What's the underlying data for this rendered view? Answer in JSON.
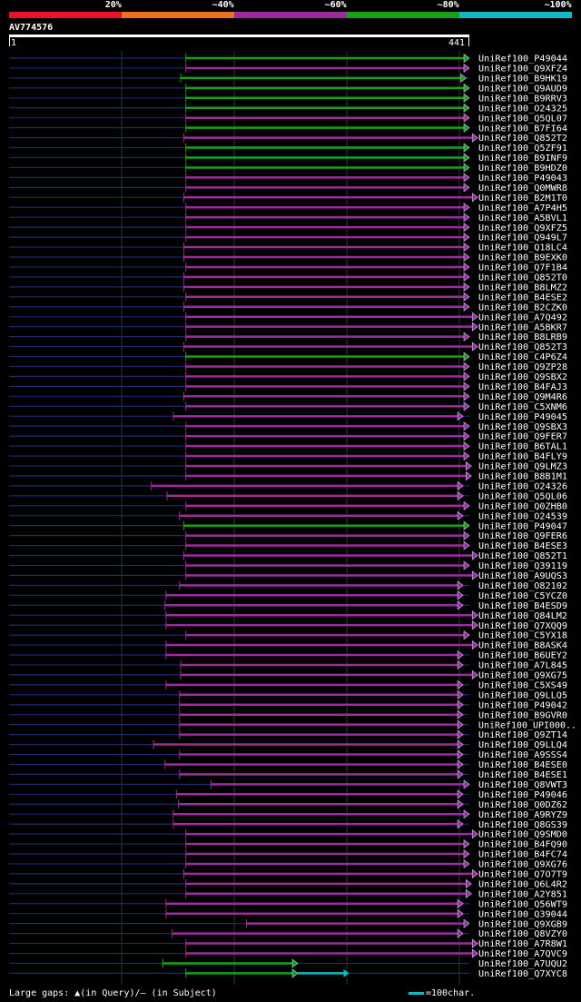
{
  "legend": {
    "labels": [
      "20%",
      "~40%",
      "~60%",
      "~80%",
      "~100%"
    ],
    "colors": [
      "#e8132b",
      "#e8731c",
      "#9a2c9c",
      "#17a117",
      "#12b8c4"
    ]
  },
  "query": {
    "id": "AV774576",
    "start": "1",
    "end": "441",
    "length": 441
  },
  "hits": [
    {
      "name": "UniRef100_P49044",
      "start": 170,
      "end": 441,
      "id": "g"
    },
    {
      "name": "UniRef100_Q9XFZ4",
      "start": 170,
      "end": 441,
      "id": "m"
    },
    {
      "name": "UniRef100_B9HK19",
      "start": 165,
      "end": 438,
      "id": "g"
    },
    {
      "name": "UniRef100_Q9AUD9",
      "start": 170,
      "end": 441,
      "id": "g"
    },
    {
      "name": "UniRef100_B9RRV3",
      "start": 170,
      "end": 441,
      "id": "g"
    },
    {
      "name": "UniRef100_O24325",
      "start": 170,
      "end": 441,
      "id": "g"
    },
    {
      "name": "UniRef100_Q5QL07",
      "start": 170,
      "end": 441,
      "id": "m"
    },
    {
      "name": "UniRef100_B7FI64",
      "start": 170,
      "end": 441,
      "id": "g"
    },
    {
      "name": "UniRef100_Q852T2",
      "start": 168,
      "end": 449,
      "id": "m"
    },
    {
      "name": "UniRef100_Q5ZF91",
      "start": 170,
      "end": 441,
      "id": "g"
    },
    {
      "name": "UniRef100_B9INF9",
      "start": 170,
      "end": 441,
      "id": "g"
    },
    {
      "name": "UniRef100_B9HDZ0",
      "start": 170,
      "end": 441,
      "id": "g"
    },
    {
      "name": "UniRef100_P49043",
      "start": 170,
      "end": 441,
      "id": "m"
    },
    {
      "name": "UniRef100_Q0MWR8",
      "start": 170,
      "end": 441,
      "id": "m"
    },
    {
      "name": "UniRef100_B2M1T0",
      "start": 168,
      "end": 449,
      "id": "m"
    },
    {
      "name": "UniRef100_A7P4H5",
      "start": 170,
      "end": 441,
      "id": "m"
    },
    {
      "name": "UniRef100_A5BVL1",
      "start": 170,
      "end": 441,
      "id": "m"
    },
    {
      "name": "UniRef100_Q9XFZ5",
      "start": 170,
      "end": 441,
      "id": "m"
    },
    {
      "name": "UniRef100_Q949L7",
      "start": 170,
      "end": 441,
      "id": "m"
    },
    {
      "name": "UniRef100_Q18LC4",
      "start": 168,
      "end": 441,
      "id": "m"
    },
    {
      "name": "UniRef100_B9EXK0",
      "start": 168,
      "end": 441,
      "id": "m"
    },
    {
      "name": "UniRef100_Q7F1B4",
      "start": 170,
      "end": 441,
      "id": "m"
    },
    {
      "name": "UniRef100_Q852T0",
      "start": 168,
      "end": 441,
      "id": "m"
    },
    {
      "name": "UniRef100_B8LMZ2",
      "start": 168,
      "end": 441,
      "id": "m"
    },
    {
      "name": "UniRef100_B4ESE2",
      "start": 170,
      "end": 441,
      "id": "m"
    },
    {
      "name": "UniRef100_B2CZK0",
      "start": 168,
      "end": 441,
      "id": "m"
    },
    {
      "name": "UniRef100_A7Q492",
      "start": 170,
      "end": 449,
      "id": "m"
    },
    {
      "name": "UniRef100_A5BKR7",
      "start": 170,
      "end": 449,
      "id": "m"
    },
    {
      "name": "UniRef100_B8LRB9",
      "start": 170,
      "end": 441,
      "id": "m"
    },
    {
      "name": "UniRef100_Q852T3",
      "start": 168,
      "end": 449,
      "id": "m"
    },
    {
      "name": "UniRef100_C4P6Z4",
      "start": 170,
      "end": 441,
      "id": "g"
    },
    {
      "name": "UniRef100_Q9ZP28",
      "start": 170,
      "end": 441,
      "id": "m"
    },
    {
      "name": "UniRef100_Q9SBX2",
      "start": 170,
      "end": 441,
      "id": "m"
    },
    {
      "name": "UniRef100_B4FAJ3",
      "start": 170,
      "end": 441,
      "id": "m"
    },
    {
      "name": "UniRef100_Q9M4R6",
      "start": 168,
      "end": 441,
      "id": "m"
    },
    {
      "name": "UniRef100_C5XNM6",
      "start": 170,
      "end": 441,
      "id": "m"
    },
    {
      "name": "UniRef100_P49045",
      "start": 158,
      "end": 435,
      "id": "m"
    },
    {
      "name": "UniRef100_Q9SBX3",
      "start": 170,
      "end": 441,
      "id": "m"
    },
    {
      "name": "UniRef100_Q9FER7",
      "start": 170,
      "end": 441,
      "id": "m"
    },
    {
      "name": "UniRef100_B6TAL1",
      "start": 170,
      "end": 441,
      "id": "m"
    },
    {
      "name": "UniRef100_B4FLY9",
      "start": 170,
      "end": 441,
      "id": "m"
    },
    {
      "name": "UniRef100_Q9LMZ3",
      "start": 170,
      "end": 443,
      "id": "m"
    },
    {
      "name": "UniRef100_B8B1M1",
      "start": 170,
      "end": 443,
      "id": "m"
    },
    {
      "name": "UniRef100_O24326",
      "start": 137,
      "end": 435,
      "id": "m"
    },
    {
      "name": "UniRef100_Q5QL06",
      "start": 152,
      "end": 435,
      "id": "m"
    },
    {
      "name": "UniRef100_Q0ZHB0",
      "start": 170,
      "end": 441,
      "id": "m"
    },
    {
      "name": "UniRef100_O24539",
      "start": 164,
      "end": 435,
      "id": "m"
    },
    {
      "name": "UniRef100_P49047",
      "start": 168,
      "end": 441,
      "id": "g"
    },
    {
      "name": "UniRef100_Q9FER6",
      "start": 170,
      "end": 441,
      "id": "m"
    },
    {
      "name": "UniRef100_B4ESE3",
      "start": 170,
      "end": 441,
      "id": "m"
    },
    {
      "name": "UniRef100_Q852T1",
      "start": 168,
      "end": 449,
      "id": "m"
    },
    {
      "name": "UniRef100_Q39119",
      "start": 170,
      "end": 441,
      "id": "m"
    },
    {
      "name": "UniRef100_A9UQS3",
      "start": 170,
      "end": 449,
      "id": "m"
    },
    {
      "name": "UniRef100_O82102",
      "start": 164,
      "end": 435,
      "id": "m"
    },
    {
      "name": "UniRef100_C5YCZ0",
      "start": 151,
      "end": 435,
      "id": "m"
    },
    {
      "name": "UniRef100_B4ESD9",
      "start": 150,
      "end": 435,
      "id": "m"
    },
    {
      "name": "UniRef100_Q84LM2",
      "start": 151,
      "end": 449,
      "id": "m"
    },
    {
      "name": "UniRef100_Q7XQQ9",
      "start": 151,
      "end": 449,
      "id": "m"
    },
    {
      "name": "UniRef100_C5YX18",
      "start": 170,
      "end": 441,
      "id": "m"
    },
    {
      "name": "UniRef100_B8ASK4",
      "start": 151,
      "end": 449,
      "id": "m"
    },
    {
      "name": "UniRef100_B6UEY2",
      "start": 151,
      "end": 435,
      "id": "m"
    },
    {
      "name": "UniRef100_A7L845",
      "start": 165,
      "end": 435,
      "id": "m"
    },
    {
      "name": "UniRef100_Q9XG75",
      "start": 165,
      "end": 449,
      "id": "m"
    },
    {
      "name": "UniRef100_C5XS49",
      "start": 151,
      "end": 435,
      "id": "m"
    },
    {
      "name": "UniRef100_Q9LLQ5",
      "start": 164,
      "end": 435,
      "id": "m"
    },
    {
      "name": "UniRef100_P49042",
      "start": 164,
      "end": 435,
      "id": "m"
    },
    {
      "name": "UniRef100_B9GVR0",
      "start": 164,
      "end": 435,
      "id": "m"
    },
    {
      "name": "UniRef100_UPI000..",
      "start": 164,
      "end": 435,
      "id": "m"
    },
    {
      "name": "UniRef100_Q9ZT14",
      "start": 164,
      "end": 435,
      "id": "m"
    },
    {
      "name": "UniRef100_Q9LLQ4",
      "start": 139,
      "end": 435,
      "id": "m"
    },
    {
      "name": "UniRef100_A9SSS4",
      "start": 164,
      "end": 435,
      "id": "m"
    },
    {
      "name": "UniRef100_B4ESE0",
      "start": 150,
      "end": 435,
      "id": "m"
    },
    {
      "name": "UniRef100_B4ESE1",
      "start": 164,
      "end": 435,
      "id": "m"
    },
    {
      "name": "UniRef100_Q8VWT3",
      "start": 194,
      "end": 441,
      "id": "m"
    },
    {
      "name": "UniRef100_P49046",
      "start": 161,
      "end": 435,
      "id": "m"
    },
    {
      "name": "UniRef100_Q0DZ62",
      "start": 163,
      "end": 435,
      "id": "m"
    },
    {
      "name": "UniRef100_A9RYZ9",
      "start": 158,
      "end": 441,
      "id": "m"
    },
    {
      "name": "UniRef100_Q8GS39",
      "start": 158,
      "end": 435,
      "id": "m"
    },
    {
      "name": "UniRef100_Q9SMD0",
      "start": 170,
      "end": 449,
      "id": "m"
    },
    {
      "name": "UniRef100_B4FQ90",
      "start": 170,
      "end": 441,
      "id": "m"
    },
    {
      "name": "UniRef100_B4FC74",
      "start": 170,
      "end": 441,
      "id": "m"
    },
    {
      "name": "UniRef100_Q9XG76",
      "start": 170,
      "end": 441,
      "id": "m"
    },
    {
      "name": "UniRef100_Q7O7T9",
      "start": 168,
      "end": 449,
      "id": "m"
    },
    {
      "name": "UniRef100_Q6L4R2",
      "start": 170,
      "end": 443,
      "id": "m"
    },
    {
      "name": "UniRef100_A2Y851",
      "start": 170,
      "end": 443,
      "id": "m"
    },
    {
      "name": "UniRef100_Q56WT9",
      "start": 151,
      "end": 435,
      "id": "m"
    },
    {
      "name": "UniRef100_Q39044",
      "start": 151,
      "end": 435,
      "id": "m"
    },
    {
      "name": "UniRef100_Q9XGB9",
      "start": 228,
      "end": 441,
      "id": "m"
    },
    {
      "name": "UniRef100_Q8VZY0",
      "start": 157,
      "end": 435,
      "id": "m"
    },
    {
      "name": "UniRef100_A7R8W1",
      "start": 170,
      "end": 449,
      "id": "m"
    },
    {
      "name": "UniRef100_A7QVC9",
      "start": 170,
      "end": 449,
      "id": "m"
    },
    {
      "name": "UniRef100_A7UQU2",
      "start": 148,
      "end": 277,
      "id": "g"
    },
    {
      "name": "UniRef100_Q7XYC8",
      "start": 170,
      "end": 277,
      "id": "g",
      "cyanTo": 326
    }
  ],
  "footer": {
    "large_gaps": "Large gaps: ",
    "in_query": "(in Query)/",
    "in_subject": "– (in Subject)",
    "scale": "=100char."
  }
}
